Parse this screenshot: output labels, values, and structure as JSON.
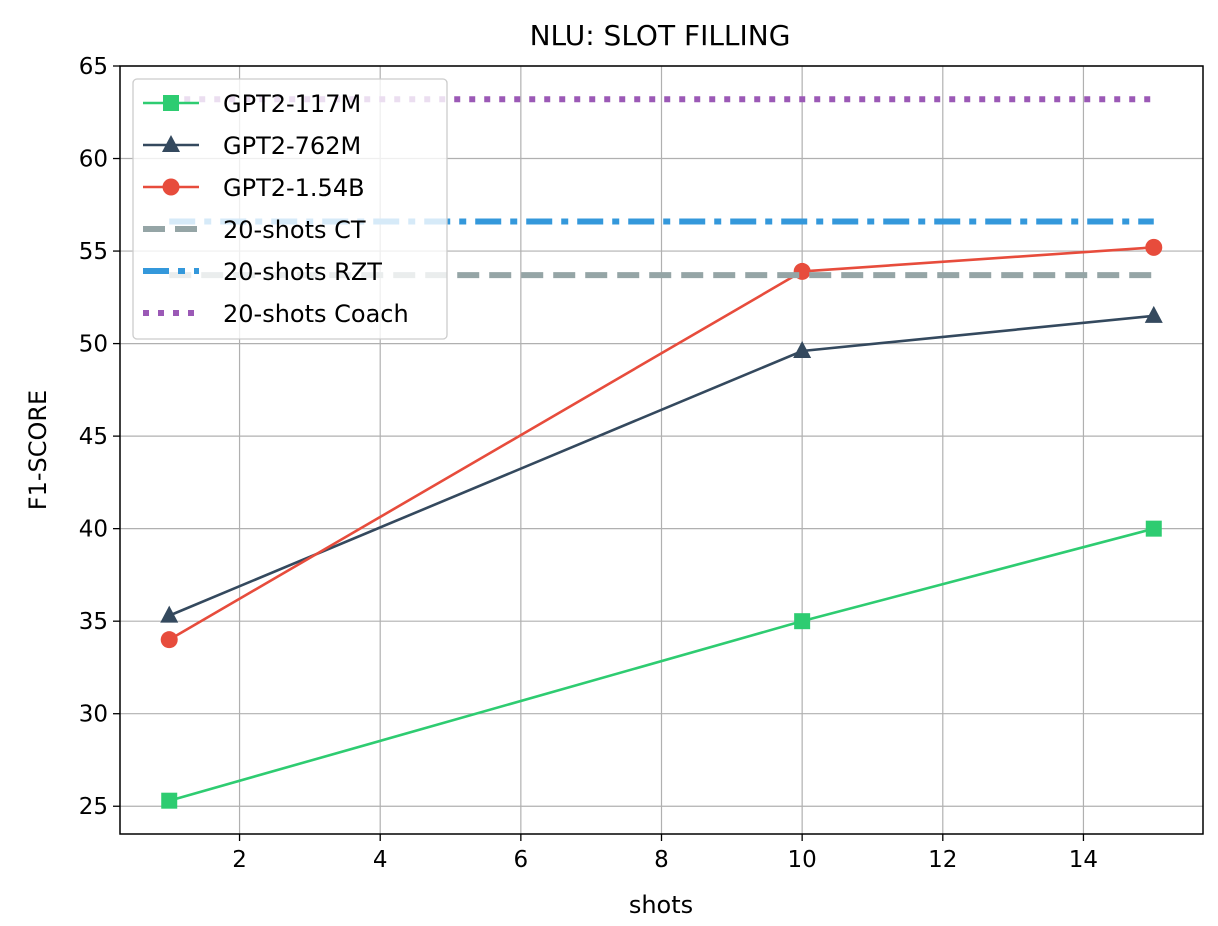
{
  "chart_data": {
    "type": "line",
    "title": "NLU: SLOT FILLING",
    "xlabel": "shots",
    "ylabel": "F1-SCORE",
    "xlim": [
      0.3,
      15.7
    ],
    "ylim": [
      23.5,
      65
    ],
    "xticks": [
      2,
      4,
      6,
      8,
      10,
      12,
      14
    ],
    "yticks": [
      25,
      30,
      35,
      40,
      45,
      50,
      55,
      60,
      65
    ],
    "grid": true,
    "legend_position": "upper-left",
    "series": [
      {
        "name": "GPT2-117M",
        "x": [
          1,
          10,
          15
        ],
        "values": [
          25.3,
          35.0,
          40.0
        ],
        "color": "#2ecc71",
        "marker": "square",
        "style": "solid"
      },
      {
        "name": "GPT2-762M",
        "x": [
          1,
          10,
          15
        ],
        "values": [
          35.3,
          49.6,
          51.5
        ],
        "color": "#34495e",
        "marker": "triangle",
        "style": "solid"
      },
      {
        "name": "GPT2-1.54B",
        "x": [
          1,
          10,
          15
        ],
        "values": [
          34.0,
          53.9,
          55.2
        ],
        "color": "#e74c3c",
        "marker": "circle",
        "style": "solid"
      },
      {
        "name": "20-shots CT",
        "x": [
          1,
          15
        ],
        "values": [
          53.7,
          53.7
        ],
        "color": "#95a5a6",
        "marker": "none",
        "style": "dashed"
      },
      {
        "name": "20-shots RZT",
        "x": [
          1,
          15
        ],
        "values": [
          56.6,
          56.6
        ],
        "color": "#3498db",
        "marker": "none",
        "style": "dashdot"
      },
      {
        "name": "20-shots Coach",
        "x": [
          1,
          15
        ],
        "values": [
          63.2,
          63.2
        ],
        "color": "#9b59b6",
        "marker": "none",
        "style": "dotted"
      }
    ]
  }
}
